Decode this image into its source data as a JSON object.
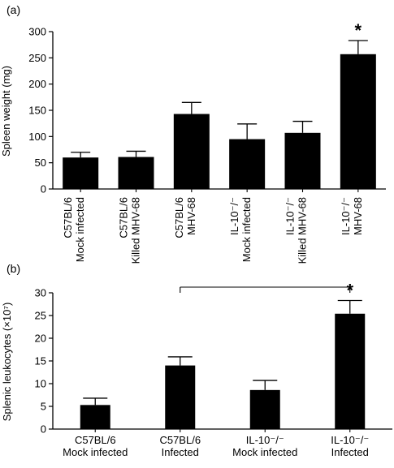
{
  "figure": {
    "panel_a_label": "(a)",
    "panel_b_label": "(b)"
  },
  "chart_data": [
    {
      "panel": "(a)",
      "type": "bar",
      "title": "",
      "xlabel": "",
      "ylabel": "Spleen weight (mg)",
      "ylim": [
        0,
        300
      ],
      "yticks": [
        0,
        50,
        100,
        150,
        200,
        250,
        300
      ],
      "grid": false,
      "legend": "none",
      "bar_color": "#000000",
      "categories": [
        [
          "C57BL/6",
          "Mock infected"
        ],
        [
          "C57BL/6",
          "Killed MHV-68"
        ],
        [
          "C57BL/6",
          "MHV-68"
        ],
        [
          "IL-10⁻/⁻",
          "Mock infected"
        ],
        [
          "IL-10⁻/⁻",
          "Killed MHV-68"
        ],
        [
          "IL-10⁻/⁻",
          "MHV-68"
        ]
      ],
      "values": [
        60,
        61,
        143,
        95,
        107,
        257
      ],
      "errors": [
        10,
        11,
        22,
        29,
        22,
        26
      ],
      "annotations": [
        {
          "category_index": 5,
          "text": "*"
        }
      ]
    },
    {
      "panel": "(b)",
      "type": "bar",
      "title": "",
      "xlabel": "",
      "ylabel": "Splenic leukocytes (×10⁷)",
      "ylim": [
        0,
        30
      ],
      "yticks": [
        "0",
        "5",
        "10",
        "15",
        "20",
        "25",
        "30"
      ],
      "grid": false,
      "legend": "none",
      "bar_color": "#000000",
      "categories": [
        [
          "C57BL/6",
          "Mock infected"
        ],
        [
          "C57BL/6",
          "Infected"
        ],
        [
          "IL-10⁻/⁻",
          "Mock infected"
        ],
        [
          "IL-10⁻/⁻",
          "Infected"
        ]
      ],
      "values": [
        5.3,
        14.0,
        8.6,
        25.4
      ],
      "errors": [
        1.5,
        1.9,
        2.1,
        2.9
      ],
      "annotations": [
        {
          "category_index": 3,
          "text": "*"
        }
      ],
      "comparison_bracket": {
        "from_index": 1,
        "to_index": 3
      }
    }
  ]
}
